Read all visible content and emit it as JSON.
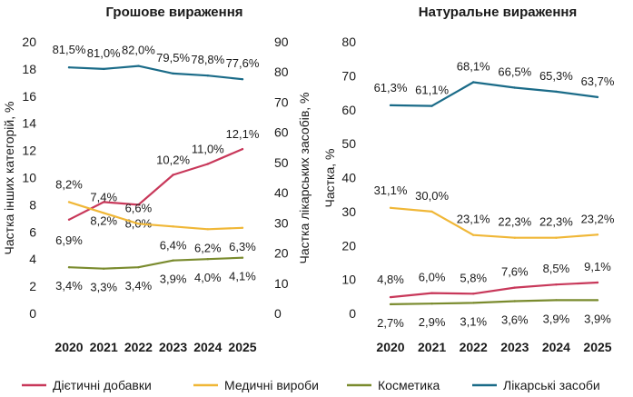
{
  "colors": {
    "dietary": "#c8385a",
    "medical": "#f0b737",
    "cosmetics": "#7a8b2e",
    "drugs": "#1a6b88"
  },
  "legend": [
    {
      "key": "dietary",
      "label": "Дієтичні добавки"
    },
    {
      "key": "medical",
      "label": "Медичні вироби"
    },
    {
      "key": "cosmetics",
      "label": "Косметика"
    },
    {
      "key": "drugs",
      "label": "Лікарські засоби"
    }
  ],
  "chart_data": [
    {
      "type": "line",
      "title": "Грошове вираження",
      "x": [
        "2020",
        "2021",
        "2022",
        "2023",
        "2024",
        "2025"
      ],
      "ylabel_left": "Частка інших категорій, %",
      "ylabel_right": "Частка лікарських засобів, %",
      "ylim_left": [
        0,
        20
      ],
      "yticks_left": [
        "0",
        "2",
        "4",
        "6",
        "8",
        "10",
        "12",
        "14",
        "16",
        "18",
        "20"
      ],
      "ylim_right": [
        0,
        90
      ],
      "yticks_right": [
        "0",
        "10",
        "20",
        "30",
        "40",
        "50",
        "60",
        "70",
        "80",
        "90"
      ],
      "series": [
        {
          "key": "dietary",
          "name": "Дієтичні добавки",
          "axis": "left",
          "values": [
            6.9,
            8.2,
            8.0,
            10.2,
            11.0,
            12.1
          ],
          "labels": [
            "6,9%",
            "8,2%",
            "8,0%",
            "10,2%",
            "11,0%",
            "12,1%"
          ]
        },
        {
          "key": "medical",
          "name": "Медичні вироби",
          "axis": "left",
          "values": [
            8.2,
            7.4,
            6.6,
            6.4,
            6.2,
            6.3
          ],
          "labels": [
            "8,2%",
            "7,4%",
            "6,6%",
            "6,4%",
            "6,2%",
            "6,3%"
          ]
        },
        {
          "key": "cosmetics",
          "name": "Косметика",
          "axis": "left",
          "values": [
            3.4,
            3.3,
            3.4,
            3.9,
            4.0,
            4.1
          ],
          "labels": [
            "3,4%",
            "3,3%",
            "3,4%",
            "3,9%",
            "4,0%",
            "4,1%"
          ]
        },
        {
          "key": "drugs",
          "name": "Лікарські засоби",
          "axis": "right",
          "values": [
            81.5,
            81.0,
            82.0,
            79.5,
            78.8,
            77.6
          ],
          "labels": [
            "81,5%",
            "81,0%",
            "82,0%",
            "79,5%",
            "78,8%",
            "77,6%"
          ]
        }
      ]
    },
    {
      "type": "line",
      "title": "Натуральне вираження",
      "x": [
        "2020",
        "2021",
        "2022",
        "2023",
        "2024",
        "2025"
      ],
      "ylabel_left": "Частка, %",
      "ylim_left": [
        0,
        80
      ],
      "yticks_left": [
        "0",
        "10",
        "20",
        "30",
        "40",
        "50",
        "60",
        "70",
        "80"
      ],
      "series": [
        {
          "key": "dietary",
          "name": "Дієтичні добавки",
          "axis": "left",
          "values": [
            4.8,
            6.0,
            5.8,
            7.6,
            8.5,
            9.1
          ],
          "labels": [
            "4,8%",
            "6,0%",
            "5,8%",
            "7,6%",
            "8,5%",
            "9,1%"
          ]
        },
        {
          "key": "medical",
          "name": "Медичні вироби",
          "axis": "left",
          "values": [
            31.1,
            30.0,
            23.1,
            22.3,
            22.3,
            23.2
          ],
          "labels": [
            "31,1%",
            "30,0%",
            "23,1%",
            "22,3%",
            "22,3%",
            "23,2%"
          ]
        },
        {
          "key": "cosmetics",
          "name": "Косметика",
          "axis": "left",
          "values": [
            2.7,
            2.9,
            3.1,
            3.6,
            3.9,
            3.9
          ],
          "labels": [
            "2,7%",
            "2,9%",
            "3,1%",
            "3,6%",
            "3,9%",
            "3,9%"
          ]
        },
        {
          "key": "drugs",
          "name": "Лікарські засоби",
          "axis": "left",
          "values": [
            61.3,
            61.1,
            68.1,
            66.5,
            65.3,
            63.7
          ],
          "labels": [
            "61,3%",
            "61,1%",
            "68,1%",
            "66,5%",
            "65,3%",
            "63,7%"
          ]
        }
      ]
    }
  ]
}
